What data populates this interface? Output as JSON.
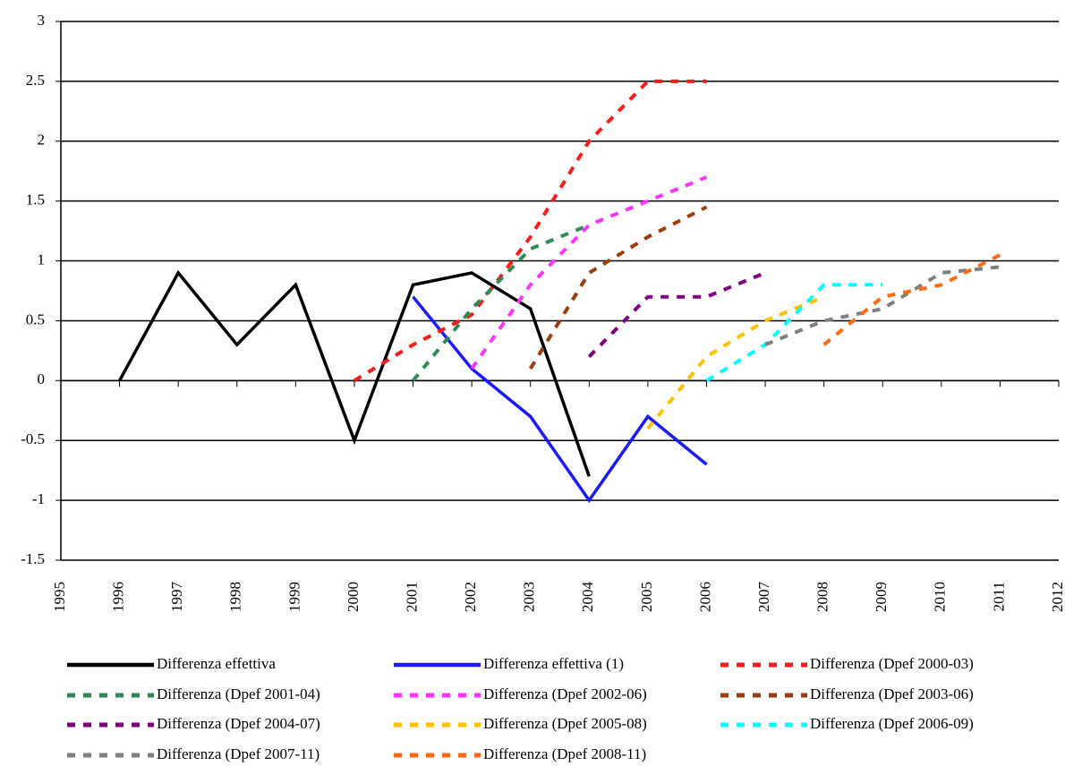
{
  "chart_data": {
    "type": "line",
    "x": [
      1996,
      1997,
      1998,
      1999,
      2000,
      2001,
      2002,
      2003,
      2004,
      2005,
      2006,
      2007,
      2008,
      2009,
      2010,
      2011
    ],
    "xlim": [
      1995,
      2012
    ],
    "xticks": [
      1995,
      1996,
      1997,
      1998,
      1999,
      2000,
      2001,
      2002,
      2003,
      2004,
      2005,
      2006,
      2007,
      2008,
      2009,
      2010,
      2011,
      2012
    ],
    "ylim": [
      -1.5,
      3
    ],
    "yticks": [
      -1.5,
      -1,
      -0.5,
      0,
      0.5,
      1,
      1.5,
      2,
      2.5,
      3
    ],
    "grid": true,
    "legend": "bottom",
    "series": [
      {
        "name": "Differenza effettiva",
        "color": "#000000",
        "dashed": false,
        "values": [
          0,
          0.9,
          0.3,
          0.8,
          -0.5,
          0.8,
          0.9,
          0.6,
          -0.8,
          null,
          null,
          null,
          null,
          null,
          null,
          null
        ]
      },
      {
        "name": "Differenza effettiva (1)",
        "color": "#1a1aff",
        "dashed": false,
        "values": [
          null,
          null,
          null,
          null,
          null,
          0.7,
          0.1,
          -0.3,
          -1,
          -0.3,
          -0.7,
          null,
          null,
          null,
          null,
          null
        ]
      },
      {
        "name": "Differenza (Dpef 2000-03)",
        "color": "#ff1a1a",
        "dashed": true,
        "values": [
          null,
          null,
          null,
          null,
          0,
          0.3,
          0.55,
          1.2,
          2.0,
          2.5,
          2.5,
          null,
          null,
          null,
          null,
          null
        ]
      },
      {
        "name": "Differenza (Dpef 2001-04)",
        "color": "#2e8b57",
        "dashed": true,
        "values": [
          null,
          null,
          null,
          null,
          null,
          0,
          0.6,
          1.1,
          1.3,
          null,
          null,
          null,
          null,
          null,
          null,
          null
        ]
      },
      {
        "name": "Differenza (Dpef 2002-06)",
        "color": "#ff33ff",
        "dashed": true,
        "values": [
          null,
          null,
          null,
          null,
          null,
          null,
          0.1,
          0.8,
          1.3,
          1.5,
          1.7,
          null,
          null,
          null,
          null,
          null
        ]
      },
      {
        "name": "Differenza (Dpef 2003-06)",
        "color": "#9c3d0f",
        "dashed": true,
        "values": [
          null,
          null,
          null,
          null,
          null,
          null,
          null,
          0.1,
          0.9,
          1.2,
          1.45,
          null,
          null,
          null,
          null,
          null
        ]
      },
      {
        "name": "Differenza (Dpef 2004-07)",
        "color": "#800080",
        "dashed": true,
        "values": [
          null,
          null,
          null,
          null,
          null,
          null,
          null,
          null,
          0.2,
          0.7,
          0.7,
          0.9,
          null,
          null,
          null,
          null
        ]
      },
      {
        "name": "Differenza (Dpef 2005-08)",
        "color": "#ffc000",
        "dashed": true,
        "values": [
          null,
          null,
          null,
          null,
          null,
          null,
          null,
          null,
          null,
          -0.4,
          0.2,
          0.5,
          0.7,
          null,
          null,
          null
        ]
      },
      {
        "name": "Differenza (Dpef 2006-09)",
        "color": "#00ffff",
        "dashed": true,
        "values": [
          null,
          null,
          null,
          null,
          null,
          null,
          null,
          null,
          null,
          null,
          0,
          0.3,
          0.8,
          0.8,
          null,
          null
        ]
      },
      {
        "name": "Differenza (Dpef 2007-11)",
        "color": "#808080",
        "dashed": true,
        "values": [
          null,
          null,
          null,
          null,
          null,
          null,
          null,
          null,
          null,
          null,
          null,
          0.3,
          0.5,
          0.6,
          0.9,
          0.95
        ]
      },
      {
        "name": "Differenza (Dpef 2008-11)",
        "color": "#ff6a13",
        "dashed": true,
        "values": [
          null,
          null,
          null,
          null,
          null,
          null,
          null,
          null,
          null,
          null,
          null,
          null,
          0.3,
          0.7,
          0.8,
          1.05
        ]
      }
    ]
  }
}
